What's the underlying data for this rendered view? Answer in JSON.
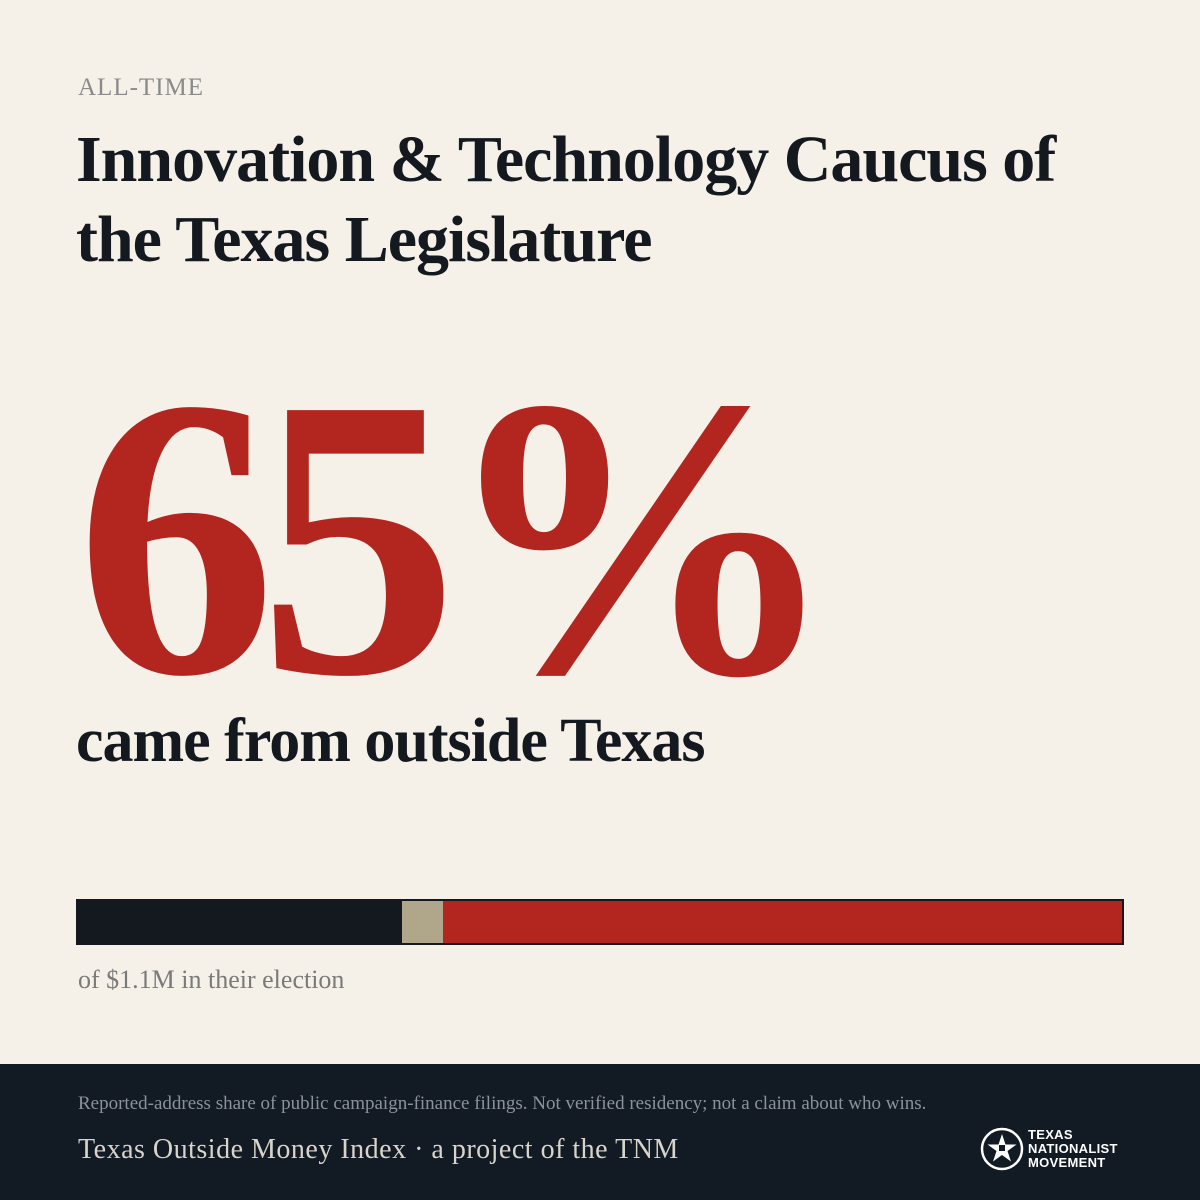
{
  "eyebrow": "ALL-TIME",
  "title": "Innovation & Technology Caucus of the Texas Legislature",
  "stat": {
    "value": "65%",
    "label": "came from outside Texas"
  },
  "caption": "of $1.1M in their election",
  "colors": {
    "background": "#f5f0e8",
    "accent": "#b3251f",
    "dark": "#14181f",
    "neutral": "#b0a78a",
    "footer": "#121a24"
  },
  "chart_data": {
    "type": "bar",
    "orientation": "horizontal-stacked",
    "unit": "percent",
    "segments": [
      {
        "value": 31,
        "color": "#14181f"
      },
      {
        "value": 4,
        "color": "#b0a78a"
      },
      {
        "value": 65,
        "color": "#b3251f"
      }
    ],
    "xlim": [
      0,
      100
    ]
  },
  "footer": {
    "disclaimer": "Reported-address share of public campaign-finance filings. Not verified residency; not a claim about who wins.",
    "credit": "Texas Outside Money Index · a project of the TNM",
    "logo": {
      "icon": "texas-star-seal-icon",
      "lines": [
        "TEXAS",
        "NATIONALIST",
        "MOVEMENT"
      ]
    }
  }
}
